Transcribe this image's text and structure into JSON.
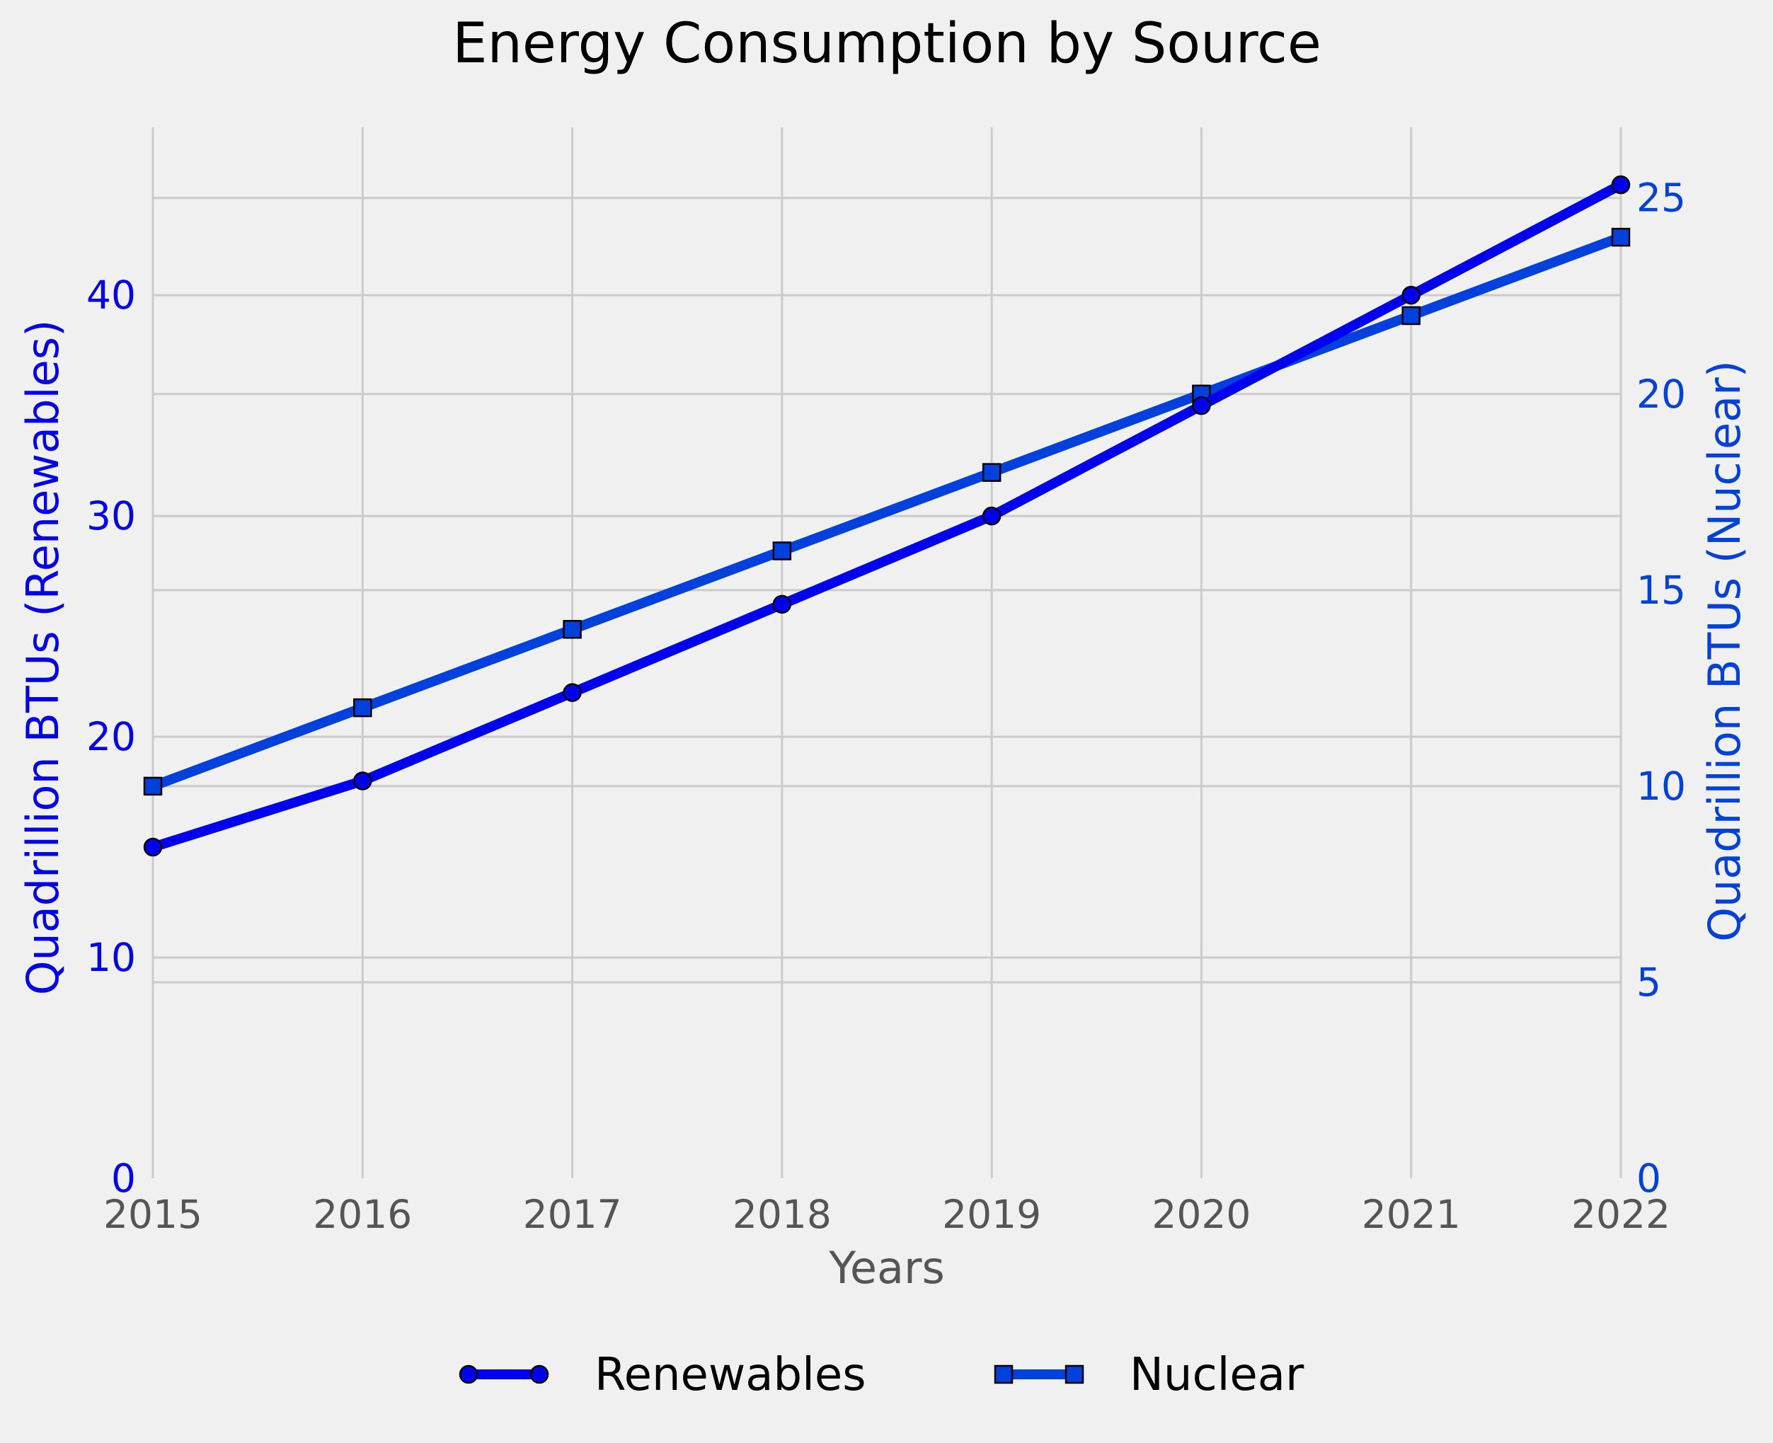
{
  "chart_data": {
    "type": "line",
    "title": "Energy Consumption by Source",
    "xlabel": "Years",
    "ylabel_left": "Quadrillion BTUs (Renewables)",
    "ylabel_right": "Quadrillion BTUs (Nuclear)",
    "x": [
      2015,
      2016,
      2017,
      2018,
      2019,
      2020,
      2021,
      2022
    ],
    "xlim": [
      2015,
      2022
    ],
    "ylim_left": [
      0,
      47.6
    ],
    "ylim_right": [
      0,
      26.8
    ],
    "yticks_left": [
      0,
      10,
      20,
      30,
      40
    ],
    "yticks_right": [
      0,
      5,
      10,
      15,
      20,
      25
    ],
    "grid": true,
    "legend_position": "bottom-center",
    "series": [
      {
        "name": "Renewables",
        "axis": "left",
        "marker": "circle",
        "color": "#0000ee",
        "values": [
          15,
          18,
          22,
          26,
          30,
          35,
          40,
          45
        ]
      },
      {
        "name": "Nuclear",
        "axis": "right",
        "marker": "square",
        "color": "#0040dd",
        "values": [
          10,
          12,
          14,
          16,
          18,
          20,
          22,
          24
        ]
      }
    ],
    "colors": {
      "background": "#f0f0f0",
      "grid": "#cbcbcb",
      "left_axis_text": "#0000ee",
      "right_axis_text": "#0040dd",
      "x_axis_text": "#555555",
      "title_text": "#000000"
    }
  }
}
